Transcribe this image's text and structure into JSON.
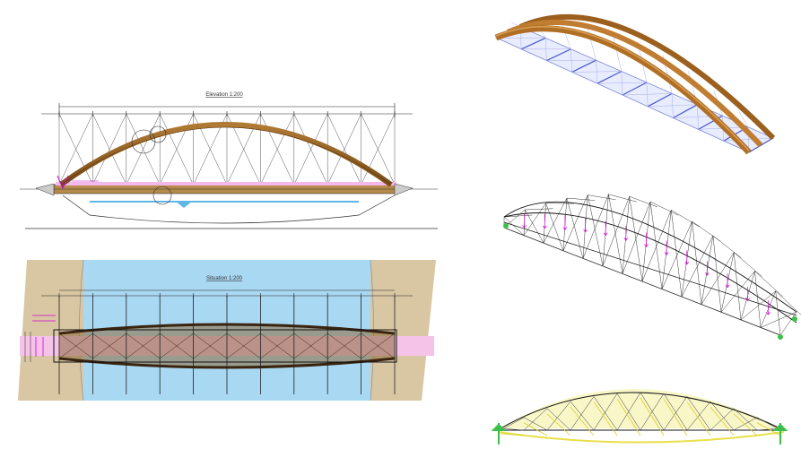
{
  "drawings": {
    "elevation": {
      "title": "Elevation 1:200"
    },
    "plan": {
      "title": "Situation 1:200"
    }
  },
  "colors": {
    "arch_wood": "#8a5a1e",
    "water": "#a9d8f2",
    "bank": "#d9c6a3",
    "magenta": "#d400d4",
    "yellow_load": "#e8e04a",
    "support_green": "#3bbf4a"
  },
  "views": [
    {
      "name": "3d-render-model",
      "type": "render"
    },
    {
      "name": "3d-wireframe-model",
      "type": "wireframe"
    },
    {
      "name": "3d-load-model",
      "type": "wireframe"
    }
  ]
}
